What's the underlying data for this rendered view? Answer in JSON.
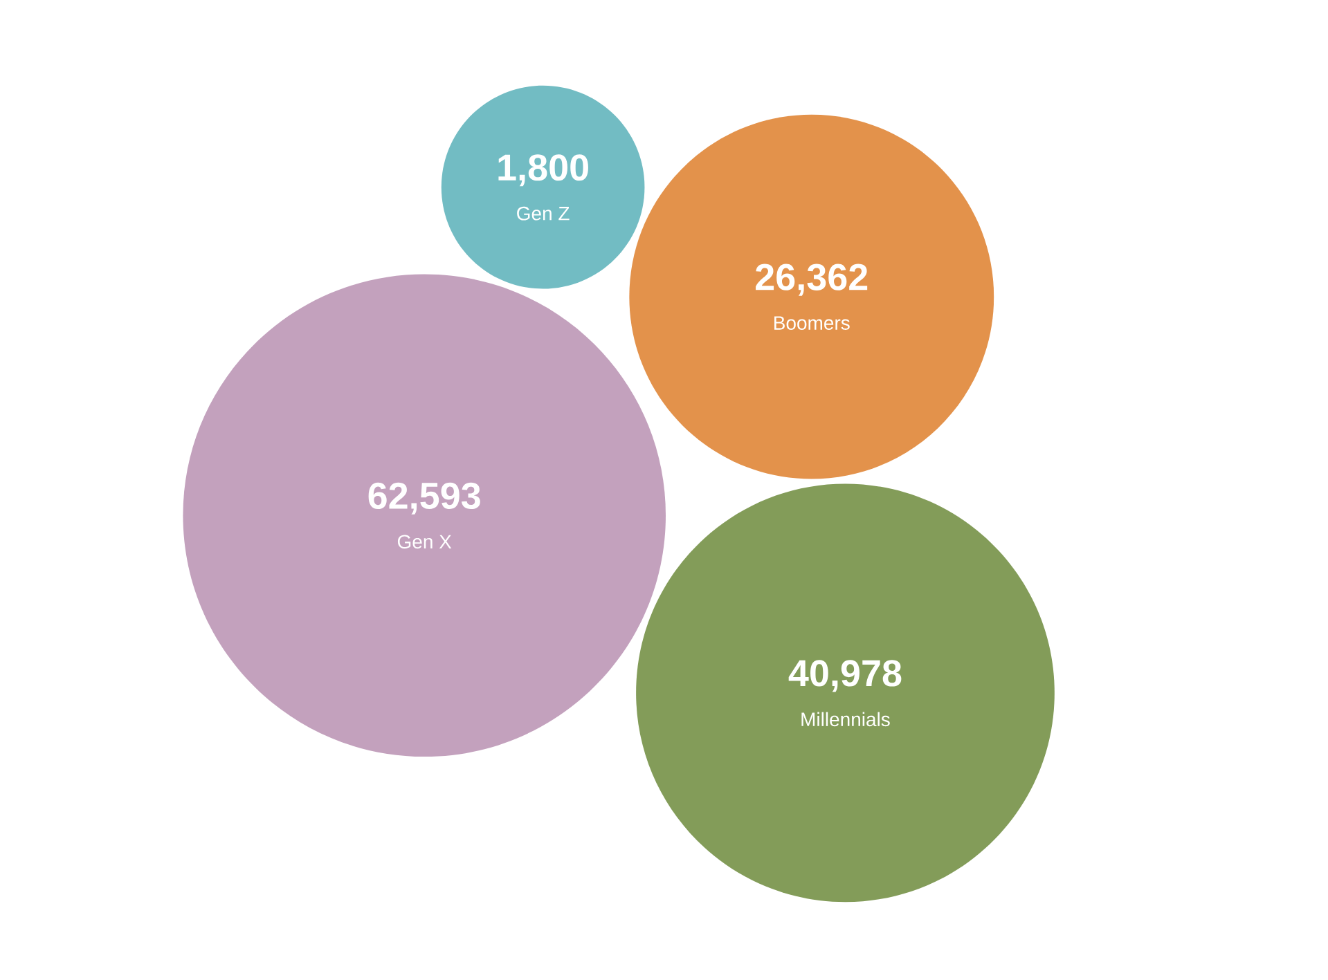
{
  "chart_data": {
    "type": "other",
    "categories": [
      "Gen Z",
      "Boomers",
      "Gen X",
      "Millennials"
    ],
    "values": [
      1800,
      26362,
      62593,
      40978
    ],
    "value_labels": [
      "1,800",
      "26,362",
      "62,593",
      "40,978"
    ],
    "colors": [
      "#72bcc3",
      "#e3924b",
      "#c3a1bd",
      "#839c59"
    ]
  }
}
